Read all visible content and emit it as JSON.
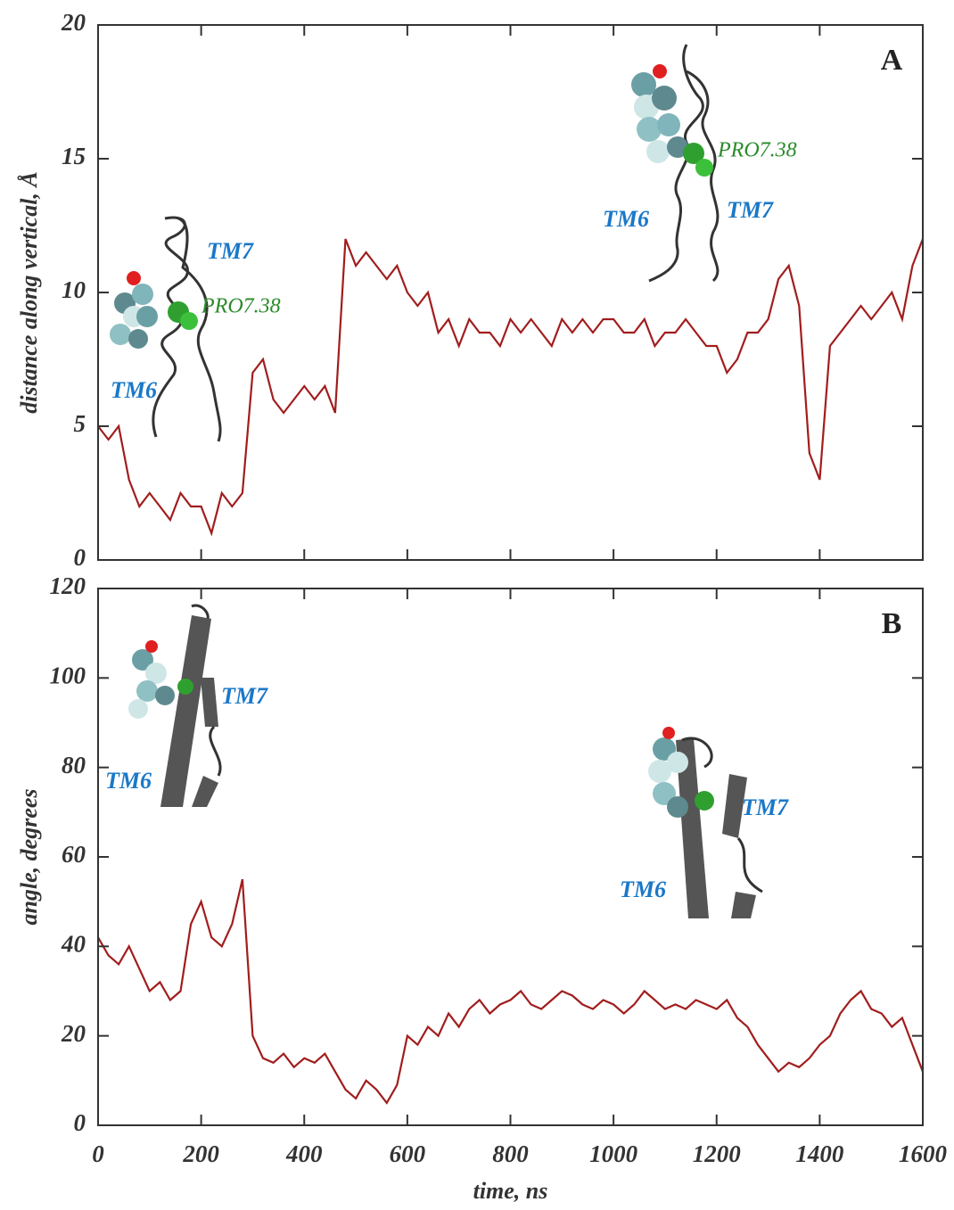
{
  "chart_data": [
    {
      "type": "line",
      "label": "A",
      "y_label": "distance along vertical, Å",
      "annotations": [
        "TM7",
        "PRO7.38",
        "TM6",
        "PRO7.38",
        "TM6",
        "TM7"
      ],
      "x": [
        0,
        20,
        40,
        60,
        80,
        100,
        120,
        140,
        160,
        180,
        200,
        220,
        240,
        260,
        280,
        300,
        320,
        340,
        360,
        380,
        400,
        420,
        440,
        460,
        480,
        500,
        520,
        540,
        560,
        580,
        600,
        620,
        640,
        660,
        680,
        700,
        720,
        740,
        760,
        780,
        800,
        820,
        840,
        860,
        880,
        900,
        920,
        940,
        960,
        980,
        1000,
        1020,
        1040,
        1060,
        1080,
        1100,
        1120,
        1140,
        1160,
        1180,
        1200,
        1220,
        1240,
        1260,
        1280,
        1300,
        1320,
        1340,
        1360,
        1380,
        1400,
        1420,
        1440,
        1460,
        1480,
        1500,
        1520,
        1540,
        1560,
        1580,
        1600
      ],
      "series": [
        {
          "color": "#a11d1d",
          "values": [
            5,
            4.5,
            5,
            3,
            2,
            2.5,
            2,
            1.5,
            2.5,
            2,
            2,
            1,
            2.5,
            2,
            2.5,
            7,
            7.5,
            6,
            5.5,
            6,
            6.5,
            6,
            6.5,
            5.5,
            12,
            11,
            11.5,
            11,
            10.5,
            11,
            10,
            9.5,
            10,
            8.5,
            9,
            8,
            9,
            8.5,
            8.5,
            8,
            9,
            8.5,
            9,
            8.5,
            8,
            9,
            8.5,
            9,
            8.5,
            9,
            9,
            8.5,
            8.5,
            9,
            8,
            8.5,
            8.5,
            9,
            8.5,
            8,
            8,
            7,
            7.5,
            8.5,
            8.5,
            9,
            10.5,
            11,
            9.5,
            4,
            3,
            8,
            8.5,
            9,
            9.5,
            9,
            9.5,
            10,
            9,
            11,
            12
          ]
        }
      ],
      "xlim": [
        0,
        1600
      ],
      "xticks": [
        0,
        200,
        400,
        600,
        800,
        1000,
        1200,
        1400,
        1600
      ],
      "ylim": [
        0,
        20
      ],
      "yticks": [
        0,
        5,
        10,
        15,
        20
      ]
    },
    {
      "type": "line",
      "label": "B",
      "y_label": "angle, degrees",
      "x_label": "time, ns",
      "annotations": [
        "TM7",
        "TM6",
        "TM7",
        "TM6"
      ],
      "x": [
        0,
        20,
        40,
        60,
        80,
        100,
        120,
        140,
        160,
        180,
        200,
        220,
        240,
        260,
        280,
        300,
        320,
        340,
        360,
        380,
        400,
        420,
        440,
        460,
        480,
        500,
        520,
        540,
        560,
        580,
        600,
        620,
        640,
        660,
        680,
        700,
        720,
        740,
        760,
        780,
        800,
        820,
        840,
        860,
        880,
        900,
        920,
        940,
        960,
        980,
        1000,
        1020,
        1040,
        1060,
        1080,
        1100,
        1120,
        1140,
        1160,
        1180,
        1200,
        1220,
        1240,
        1260,
        1280,
        1300,
        1320,
        1340,
        1360,
        1380,
        1400,
        1420,
        1440,
        1460,
        1480,
        1500,
        1520,
        1540,
        1560,
        1580,
        1600
      ],
      "series": [
        {
          "color": "#a11d1d",
          "values": [
            42,
            38,
            36,
            40,
            35,
            30,
            32,
            28,
            30,
            45,
            50,
            42,
            40,
            45,
            55,
            20,
            15,
            14,
            16,
            13,
            15,
            14,
            16,
            12,
            8,
            6,
            10,
            8,
            5,
            9,
            20,
            18,
            22,
            20,
            25,
            22,
            26,
            28,
            25,
            27,
            28,
            30,
            27,
            26,
            28,
            30,
            29,
            27,
            26,
            28,
            27,
            25,
            27,
            30,
            28,
            26,
            27,
            26,
            28,
            27,
            26,
            28,
            24,
            22,
            18,
            15,
            12,
            14,
            13,
            15,
            18,
            20,
            25,
            28,
            30,
            26,
            25,
            22,
            24,
            18,
            12
          ]
        }
      ],
      "xlim": [
        0,
        1600
      ],
      "xticks": [
        0,
        200,
        400,
        600,
        800,
        1000,
        1200,
        1400,
        1600
      ],
      "ylim": [
        0,
        120
      ],
      "yticks": [
        0,
        20,
        40,
        60,
        80,
        100,
        120
      ]
    }
  ]
}
